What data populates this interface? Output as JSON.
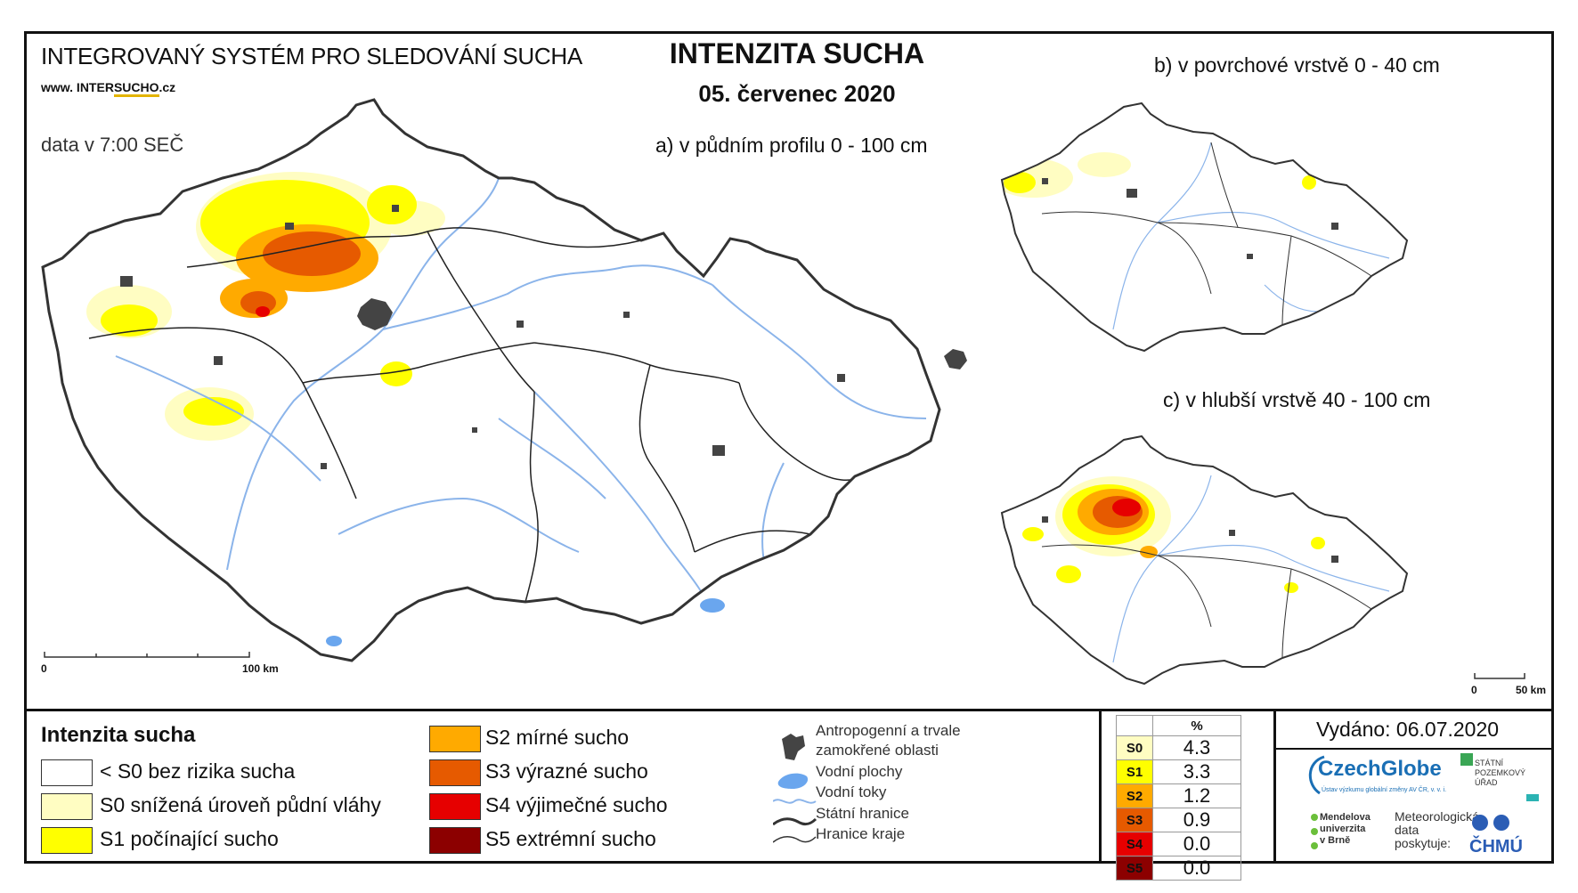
{
  "header": {
    "system_name": "INTEGROVANÝ SYSTÉM PRO SLEDOVÁNÍ SUCHA",
    "url_prefix": "www. INTER",
    "url_highlight": "SUCHO",
    "url_suffix": ".cz",
    "data_time": "data v 7:00 SEČ",
    "title": "INTENZITA SUCHA",
    "date": "05. červenec 2020"
  },
  "maps": {
    "main_label": "a) v půdním profilu 0 - 100 cm",
    "surface_label": "b) v povrchové vrstvě 0 - 40 cm",
    "deep_label": "c) v hlubší vrstvě 40 - 100 cm",
    "main_scale": {
      "start": "0",
      "end": "100 km"
    },
    "small_scale": {
      "start": "0",
      "end": "50 km"
    }
  },
  "legend": {
    "title": "Intenzita sucha",
    "classes": [
      {
        "label": "< S0 bez rizika sucha",
        "color": "#ffffff"
      },
      {
        "label": "S0 snížená úroveň půdní vláhy",
        "color": "#fffdc2"
      },
      {
        "label": "S1 počínající sucho",
        "color": "#ffff00"
      },
      {
        "label": "S2 mírné sucho",
        "color": "#ffaa00"
      },
      {
        "label": "S3 výrazné sucho",
        "color": "#e65a00"
      },
      {
        "label": "S4 výjimečné sucho",
        "color": "#e60000"
      },
      {
        "label": "S5 extrémní sucho",
        "color": "#8c0000"
      }
    ],
    "symbols": [
      {
        "label": "Antropogenní a trvale",
        "icon": "urban-area-icon"
      },
      {
        "label": "zamokřené oblasti",
        "icon": ""
      },
      {
        "label": "Vodní plochy",
        "icon": "water-body-icon"
      },
      {
        "label": "Vodní toky",
        "icon": "river-icon"
      },
      {
        "label": "Státní hranice",
        "icon": "state-border-icon"
      },
      {
        "label": "Hranice kraje",
        "icon": "region-border-icon"
      }
    ]
  },
  "percent_table": {
    "header": "%",
    "rows": [
      {
        "cls": "S0",
        "value": "4.3",
        "color": "#fffdc2"
      },
      {
        "cls": "S1",
        "value": "3.3",
        "color": "#ffff00"
      },
      {
        "cls": "S2",
        "value": "1.2",
        "color": "#ffaa00"
      },
      {
        "cls": "S3",
        "value": "0.9",
        "color": "#e65a00"
      },
      {
        "cls": "S4",
        "value": "0.0",
        "color": "#e60000"
      },
      {
        "cls": "S5",
        "value": "0.0",
        "color": "#8c0000"
      }
    ]
  },
  "footer": {
    "issued": "Vydáno: 06.07.2020",
    "czechglobe": "CzechGlobe",
    "czechglobe_sub": "Ústav výzkumu globální změny AV ČR, v. v. i.",
    "spu": "STÁTNÍ POZEMKOVÝ ÚŘAD",
    "mendel": [
      "Mendelova",
      "univerzita",
      "v Brně"
    ],
    "met": [
      "Meteorologická",
      "data",
      "poskytuje:"
    ],
    "chmu": "ČHMÚ"
  }
}
